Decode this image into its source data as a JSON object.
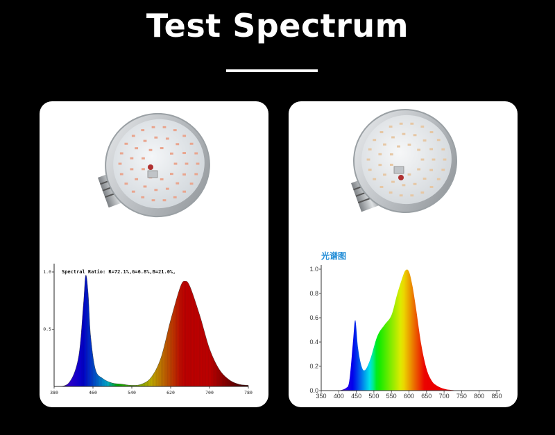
{
  "page": {
    "title": "Test Spectrum"
  },
  "chart_data": [
    {
      "type": "area",
      "title": "Spectral Ratio:  R=72.1%,G=6.8%,B=21.0%,",
      "xlabel": "",
      "ylabel": "",
      "xlim": [
        380,
        780
      ],
      "ylim": [
        0,
        1.0
      ],
      "x_ticks": [
        "380",
        "460",
        "540",
        "620",
        "700",
        "780"
      ],
      "y_ticks": [
        "1.0",
        "0.5"
      ],
      "x": [
        380,
        410,
        430,
        440,
        445,
        450,
        455,
        465,
        480,
        500,
        520,
        540,
        560,
        580,
        600,
        620,
        640,
        650,
        660,
        680,
        700,
        720,
        740,
        760,
        780
      ],
      "values": [
        0.0,
        0.03,
        0.25,
        0.7,
        0.97,
        0.82,
        0.45,
        0.15,
        0.07,
        0.03,
        0.02,
        0.01,
        0.02,
        0.08,
        0.25,
        0.58,
        0.87,
        0.92,
        0.87,
        0.62,
        0.33,
        0.15,
        0.06,
        0.02,
        0.01
      ]
    },
    {
      "type": "area",
      "title": "光谱图",
      "xlabel": "",
      "ylabel": "",
      "xlim": [
        350,
        850
      ],
      "ylim": [
        0,
        1.0
      ],
      "x_ticks": [
        "350",
        "400",
        "450",
        "500",
        "550",
        "600",
        "650",
        "700",
        "750",
        "800",
        "850"
      ],
      "y_ticks": [
        "0.0",
        "0.2",
        "0.4",
        "0.6",
        "0.8",
        "1.0"
      ],
      "x": [
        400,
        420,
        430,
        440,
        447,
        455,
        465,
        475,
        490,
        510,
        530,
        550,
        565,
        580,
        590,
        600,
        610,
        620,
        635,
        650,
        665,
        680,
        700,
        720,
        760,
        790
      ],
      "values": [
        0.0,
        0.02,
        0.08,
        0.38,
        0.58,
        0.35,
        0.2,
        0.17,
        0.26,
        0.45,
        0.54,
        0.62,
        0.78,
        0.92,
        0.99,
        0.98,
        0.86,
        0.68,
        0.38,
        0.18,
        0.08,
        0.04,
        0.015,
        0.005,
        0.0,
        0.0
      ]
    }
  ],
  "colors": {
    "background": "#000000",
    "card": "#ffffff",
    "heading": "#1e8bd6"
  }
}
